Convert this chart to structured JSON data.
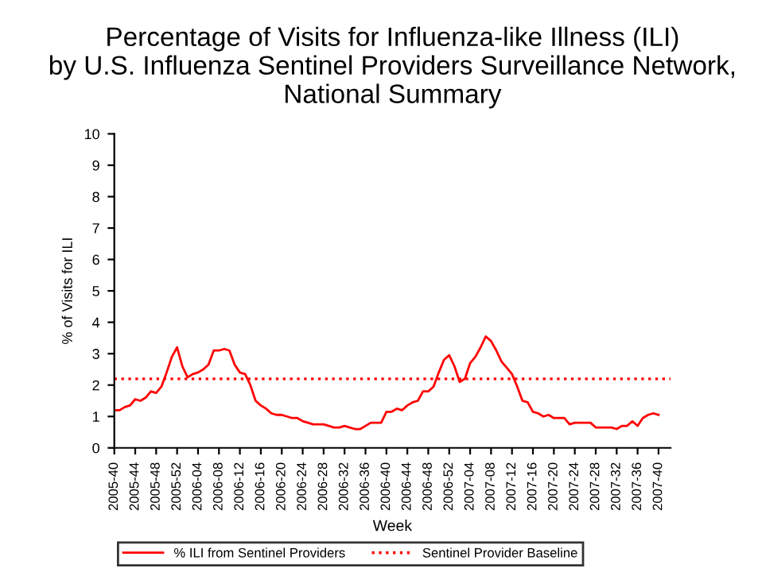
{
  "chart_data": {
    "type": "line",
    "title": "Percentage of Visits for Influenza-like Illness (ILI)\nby U.S. Influenza Sentinel Providers Surveillance Network,\nNational Summary",
    "xlabel": "Week",
    "ylabel": "% of Visits for ILI",
    "categories": [
      "2005-40",
      null,
      null,
      null,
      "2005-44",
      null,
      null,
      null,
      "2005-48",
      null,
      null,
      null,
      "2005-52",
      null,
      null,
      null,
      "2006-04",
      null,
      null,
      null,
      "2006-08",
      null,
      null,
      null,
      "2006-12",
      null,
      null,
      null,
      "2006-16",
      null,
      null,
      null,
      "2006-20",
      null,
      null,
      null,
      "2006-24",
      null,
      null,
      null,
      "2006-28",
      null,
      null,
      null,
      "2006-32",
      null,
      null,
      null,
      "2006-36",
      null,
      null,
      null,
      "2006-40",
      null,
      null,
      null,
      "2006-44",
      null,
      null,
      null,
      "2006-48",
      null,
      null,
      null,
      "2006-52",
      null,
      null,
      null,
      "2007-04",
      null,
      null,
      null,
      "2007-08",
      null,
      null,
      null,
      "2007-12",
      null,
      null,
      null,
      "2007-16",
      null,
      null,
      null,
      "2007-20",
      null,
      null,
      null,
      "2007-24",
      null,
      null,
      null,
      "2007-28",
      null,
      null,
      null,
      "2007-32",
      null,
      null,
      null,
      "2007-36",
      null,
      null,
      null,
      "2007-40"
    ],
    "series": [
      {
        "name": "% ILI from Sentinel Providers",
        "color": "#ff0000",
        "values": [
          1.2,
          1.2,
          1.3,
          1.35,
          1.55,
          1.5,
          1.6,
          1.8,
          1.75,
          1.95,
          2.4,
          2.9,
          3.2,
          2.6,
          2.25,
          2.35,
          2.4,
          2.5,
          2.65,
          3.1,
          3.1,
          3.15,
          3.1,
          2.65,
          2.4,
          2.35,
          2.0,
          1.5,
          1.35,
          1.25,
          1.1,
          1.05,
          1.05,
          1.0,
          0.95,
          0.95,
          0.85,
          0.8,
          0.75,
          0.75,
          0.75,
          0.7,
          0.65,
          0.65,
          0.7,
          0.65,
          0.6,
          0.6,
          0.7,
          0.8,
          0.8,
          0.8,
          1.15,
          1.15,
          1.25,
          1.2,
          1.35,
          1.45,
          1.5,
          1.8,
          1.8,
          1.95,
          2.4,
          2.8,
          2.95,
          2.6,
          2.1,
          2.2,
          2.7,
          2.9,
          3.2,
          3.55,
          3.4,
          3.1,
          2.75,
          2.55,
          2.35,
          1.95,
          1.5,
          1.45,
          1.15,
          1.1,
          1.0,
          1.05,
          0.95,
          0.95,
          0.95,
          0.75,
          0.8,
          0.8,
          0.8,
          0.8,
          0.65,
          0.65,
          0.65,
          0.65,
          0.6,
          0.7,
          0.7,
          0.85,
          0.7,
          0.95,
          1.05,
          1.1,
          1.05
        ]
      }
    ],
    "ref_lines": [
      {
        "axis": "y",
        "value": 2.2,
        "label": "Sentinel Provider Baseline",
        "color": "#ff0000",
        "line_style": "dotted"
      }
    ],
    "ylim": [
      0,
      10
    ],
    "yticks": [
      0,
      1,
      2,
      3,
      4,
      5,
      6,
      7,
      8,
      9,
      10
    ],
    "grid": false,
    "legend": "bottom",
    "marker": "none",
    "line_style": "solid"
  }
}
